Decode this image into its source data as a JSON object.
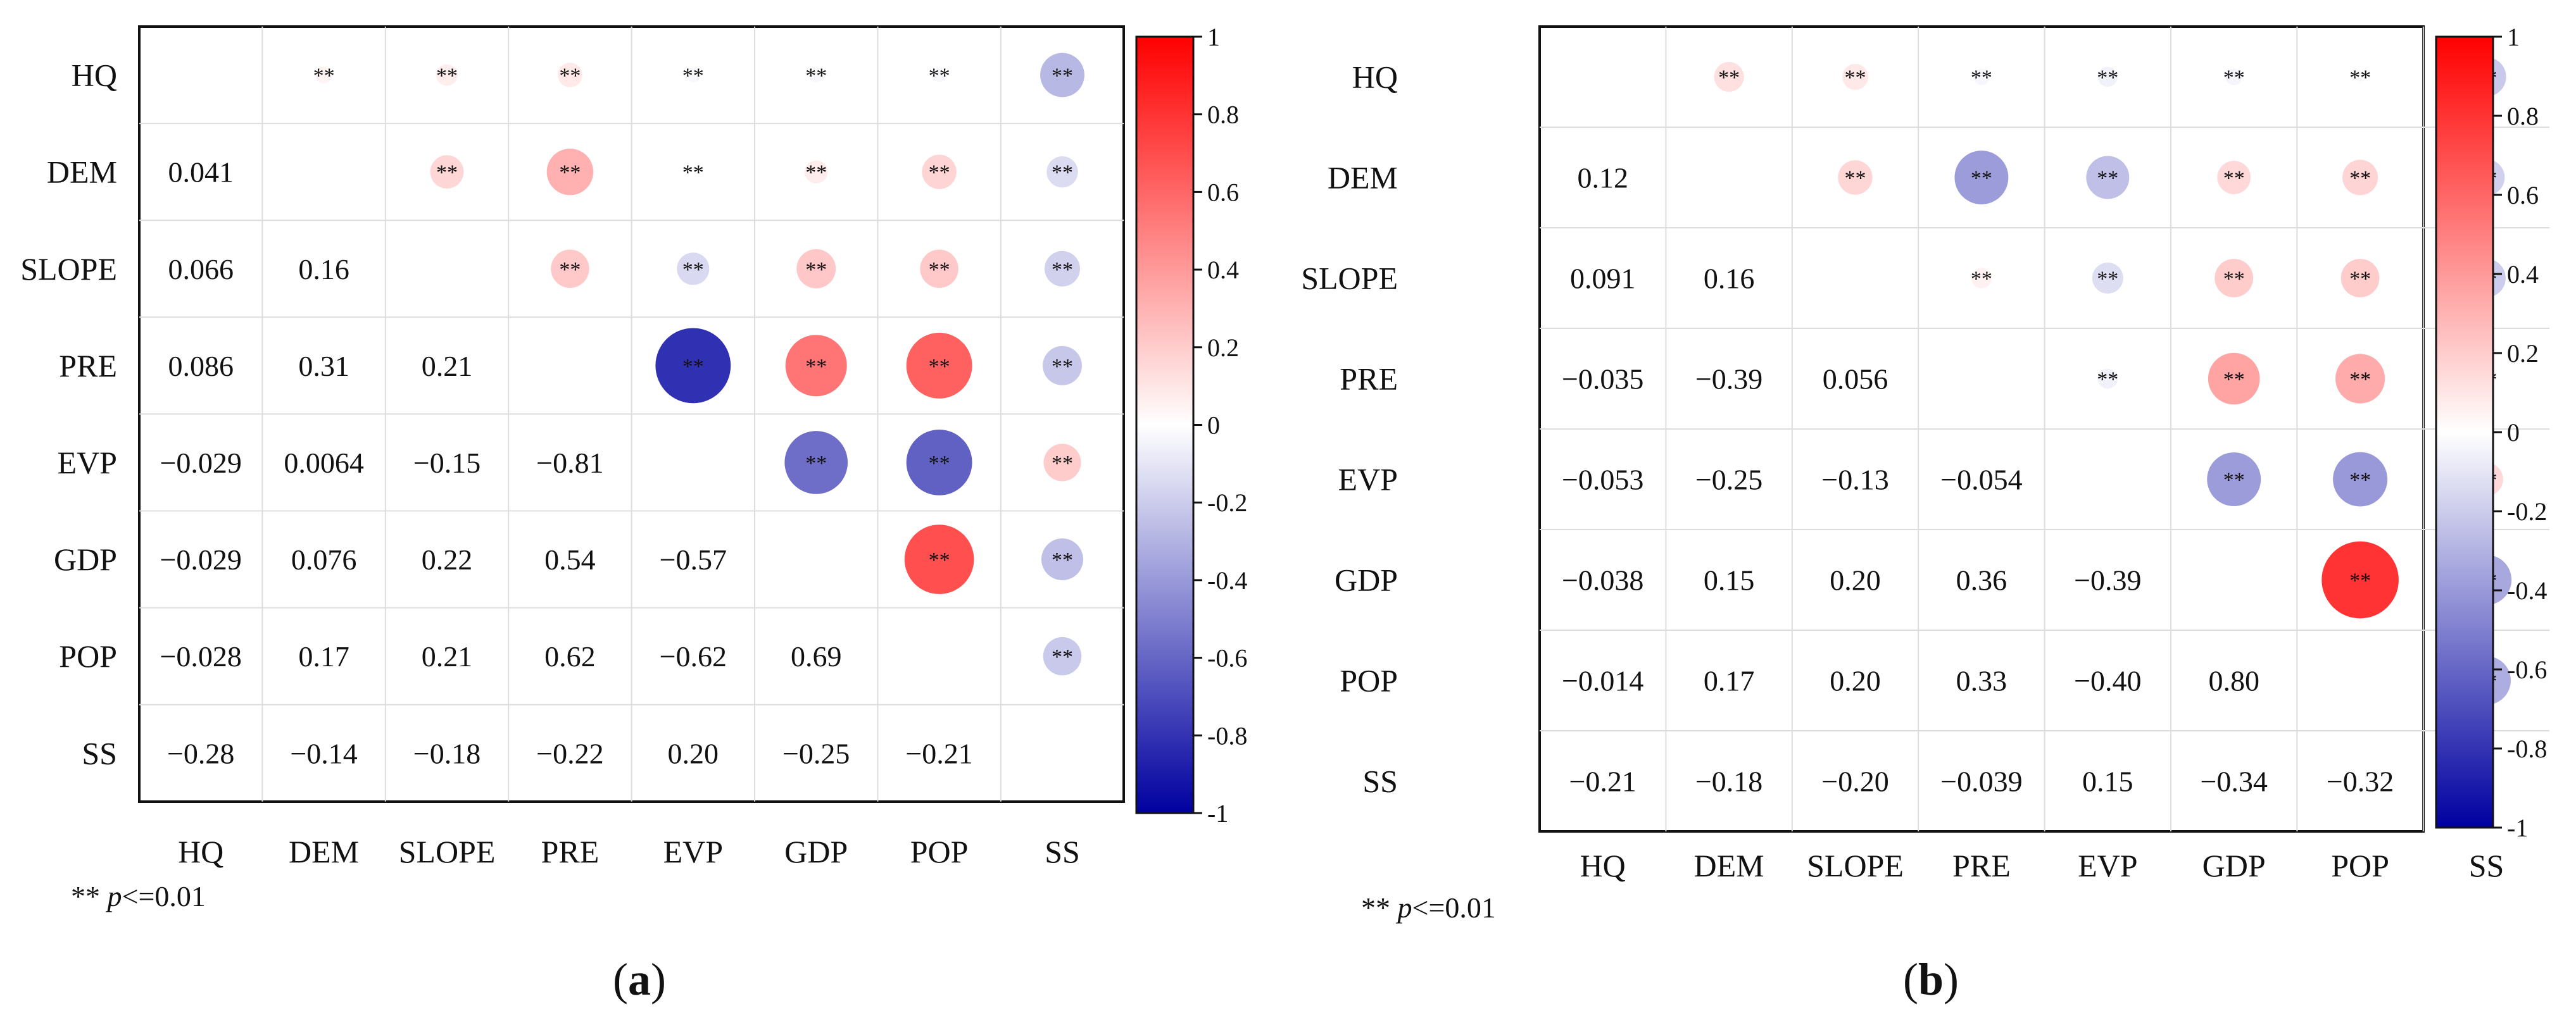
{
  "chart_data": [
    {
      "type": "heatmap",
      "panel_label": "a",
      "variables": [
        "HQ",
        "DEM",
        "SLOPE",
        "PRE",
        "EVP",
        "GDP",
        "POP",
        "SS"
      ],
      "lower_values": [
        [
          null,
          null,
          null,
          null,
          null,
          null,
          null,
          null
        ],
        [
          "0.041",
          null,
          null,
          null,
          null,
          null,
          null,
          null
        ],
        [
          "0.066",
          "0.16",
          null,
          null,
          null,
          null,
          null,
          null
        ],
        [
          "0.086",
          "0.31",
          "0.21",
          null,
          null,
          null,
          null,
          null
        ],
        [
          "−0.029",
          "0.0064",
          "−0.15",
          "−0.81",
          null,
          null,
          null,
          null
        ],
        [
          "−0.029",
          "0.076",
          "0.22",
          "0.54",
          "−0.57",
          null,
          null,
          null
        ],
        [
          "−0.028",
          "0.17",
          "0.21",
          "0.62",
          "−0.62",
          "0.69",
          null,
          null
        ],
        [
          "−0.28",
          "−0.14",
          "−0.18",
          "−0.22",
          "0.20",
          "−0.25",
          "−0.21",
          null
        ]
      ],
      "significance_mark": "**",
      "colorbar_ticks": [
        "1",
        "0.8",
        "0.6",
        "0.4",
        "0.2",
        "0",
        "-0.2",
        "-0.4",
        "-0.6",
        "-0.8",
        "-1"
      ],
      "note_prefix": "** ",
      "note_p": "p",
      "note_suffix": "<=0.01"
    },
    {
      "type": "heatmap",
      "panel_label": "b",
      "variables": [
        "HQ",
        "DEM",
        "SLOPE",
        "PRE",
        "EVP",
        "GDP",
        "POP",
        "SS"
      ],
      "lower_values": [
        [
          null,
          null,
          null,
          null,
          null,
          null,
          null,
          null
        ],
        [
          "0.12",
          null,
          null,
          null,
          null,
          null,
          null,
          null
        ],
        [
          "0.091",
          "0.16",
          null,
          null,
          null,
          null,
          null,
          null
        ],
        [
          "−0.035",
          "−0.39",
          "0.056",
          null,
          null,
          null,
          null,
          null
        ],
        [
          "−0.053",
          "−0.25",
          "−0.13",
          "−0.054",
          null,
          null,
          null,
          null
        ],
        [
          "−0.038",
          "0.15",
          "0.20",
          "0.36",
          "−0.39",
          null,
          null,
          null
        ],
        [
          "−0.014",
          "0.17",
          "0.20",
          "0.33",
          "−0.40",
          "0.80",
          null,
          null
        ],
        [
          "−0.21",
          "−0.18",
          "−0.20",
          "−0.039",
          "0.15",
          "−0.34",
          "−0.32",
          null
        ]
      ],
      "significance_mark": "**",
      "colorbar_ticks": [
        "1",
        "0.8",
        "0.6",
        "0.4",
        "0.2",
        "0",
        "-0.2",
        "-0.4",
        "-0.6",
        "-0.8",
        "-1"
      ],
      "note_prefix": "** ",
      "note_p": "p",
      "note_suffix": "<=0.01"
    }
  ]
}
